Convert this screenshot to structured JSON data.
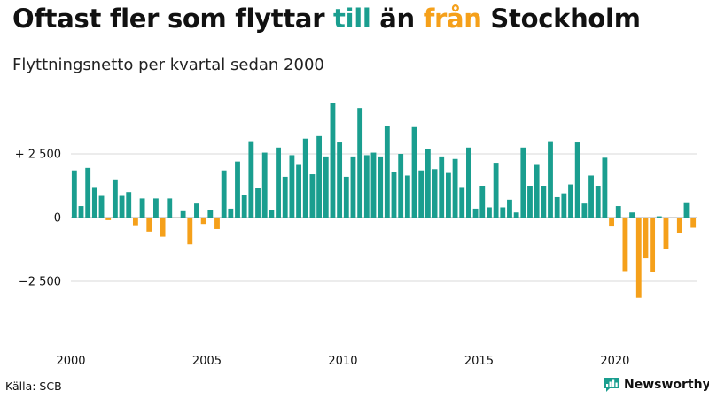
{
  "header": {
    "title_parts": [
      {
        "text": "Oftast fler som flyttar ",
        "color": "#111111"
      },
      {
        "text": "till",
        "color": "#1a9e8f"
      },
      {
        "text": " än ",
        "color": "#111111"
      },
      {
        "text": "från",
        "color": "#f5a01a"
      },
      {
        "text": " Stockholm",
        "color": "#111111"
      }
    ],
    "subtitle": "Flyttningsnetto per kvartal sedan 2000"
  },
  "footer": {
    "source": "Källa: SCB",
    "brand": "Newsworthy",
    "brand_icon": "newsworthy-logo-icon"
  },
  "colors": {
    "positive": "#1a9e8f",
    "negative": "#f5a01a",
    "grid": "#d9d9d9",
    "zero_line": "#aaaaaa"
  },
  "chart_data": {
    "type": "bar",
    "title": "Oftast fler som flyttar till än från Stockholm",
    "subtitle": "Flyttningsnetto per kvartal sedan 2000",
    "xlabel": "",
    "ylabel": "",
    "ylim": [
      -4800,
      4800
    ],
    "grid": true,
    "yticks": [
      {
        "value": 2500,
        "label": "+ 2 500"
      },
      {
        "value": 0,
        "label": "0"
      },
      {
        "value": -2500,
        "label": "−2 500"
      }
    ],
    "xticks": [
      {
        "year": 2000,
        "label": "2000"
      },
      {
        "year": 2005,
        "label": "2005"
      },
      {
        "year": 2010,
        "label": "2010"
      },
      {
        "year": 2015,
        "label": "2015"
      },
      {
        "year": 2020,
        "label": "2020"
      }
    ],
    "start_year": 2000,
    "start_quarter": 1,
    "values": [
      1850,
      450,
      1950,
      1200,
      850,
      -100,
      1500,
      850,
      1000,
      -300,
      750,
      -550,
      750,
      -750,
      750,
      0,
      250,
      -1050,
      550,
      -250,
      300,
      -450,
      1850,
      350,
      2200,
      900,
      3000,
      1150,
      2550,
      300,
      2750,
      1600,
      2450,
      2100,
      3100,
      1700,
      3200,
      2400,
      4500,
      2950,
      1600,
      2400,
      4300,
      2450,
      2550,
      2400,
      3600,
      1800,
      2500,
      1650,
      3550,
      1850,
      2700,
      1900,
      2400,
      1750,
      2300,
      1200,
      2750,
      350,
      1250,
      400,
      2150,
      400,
      700,
      200,
      2750,
      1250,
      2100,
      1250,
      3000,
      800,
      950,
      1300,
      2950,
      550,
      1650,
      1250,
      2350,
      -350,
      450,
      -2100,
      200,
      -3150,
      -1600,
      -2150,
      50,
      -1250,
      0,
      -600,
      600,
      -400
    ]
  }
}
